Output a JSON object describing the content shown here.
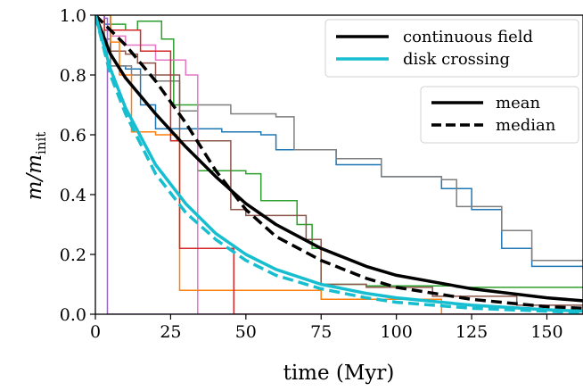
{
  "chart_data": {
    "type": "line",
    "xlabel": "time (Myr)",
    "ylabel": "m/m_init",
    "ylabel_main": "m/m",
    "ylabel_sub": "init",
    "xlim": [
      0,
      162
    ],
    "ylim": [
      0,
      1.0
    ],
    "xticks": [
      0,
      25,
      50,
      75,
      100,
      125,
      150
    ],
    "yticks": [
      0.0,
      0.2,
      0.4,
      0.6,
      0.8,
      1.0
    ],
    "xtick_labels": [
      "0",
      "25",
      "50",
      "75",
      "100",
      "125",
      "150"
    ],
    "ytick_labels": [
      "0.0",
      "0.2",
      "0.4",
      "0.6",
      "0.8",
      "1.0"
    ],
    "grid": false,
    "legend_color": {
      "position": "top-right",
      "entries": [
        {
          "label": "continuous field",
          "color": "#000000"
        },
        {
          "label": "disk crossing",
          "color": "#17becf"
        }
      ]
    },
    "legend_style": {
      "position": "upper-right-below",
      "entries": [
        {
          "label": "mean",
          "style": "solid"
        },
        {
          "label": "median",
          "style": "dashed"
        }
      ]
    },
    "thick_curves": [
      {
        "name": "continuous field",
        "stat": "mean",
        "color": "#000000",
        "style": "solid",
        "x": [
          0,
          5,
          10,
          20,
          30,
          40,
          50,
          60,
          75,
          90,
          100,
          125,
          150,
          162
        ],
        "y": [
          1.0,
          0.87,
          0.79,
          0.67,
          0.56,
          0.46,
          0.37,
          0.3,
          0.22,
          0.16,
          0.13,
          0.085,
          0.055,
          0.045
        ]
      },
      {
        "name": "continuous field",
        "stat": "median",
        "color": "#000000",
        "style": "dashed",
        "x": [
          0,
          5,
          10,
          20,
          30,
          40,
          50,
          60,
          75,
          90,
          100,
          125,
          150,
          162
        ],
        "y": [
          1.0,
          0.95,
          0.9,
          0.78,
          0.64,
          0.48,
          0.35,
          0.26,
          0.18,
          0.12,
          0.09,
          0.05,
          0.025,
          0.02
        ]
      },
      {
        "name": "disk crossing",
        "stat": "mean",
        "color": "#17becf",
        "style": "solid",
        "x": [
          0,
          5,
          10,
          20,
          30,
          40,
          50,
          60,
          75,
          90,
          100,
          125,
          150,
          162
        ],
        "y": [
          1.0,
          0.82,
          0.69,
          0.5,
          0.37,
          0.27,
          0.2,
          0.15,
          0.1,
          0.07,
          0.055,
          0.03,
          0.015,
          0.01
        ]
      },
      {
        "name": "disk crossing",
        "stat": "median",
        "color": "#17becf",
        "style": "dashed",
        "x": [
          0,
          5,
          10,
          20,
          30,
          40,
          50,
          60,
          75,
          90,
          100,
          125,
          150,
          162
        ],
        "y": [
          1.0,
          0.8,
          0.67,
          0.47,
          0.34,
          0.25,
          0.18,
          0.13,
          0.085,
          0.055,
          0.04,
          0.02,
          0.01,
          0.005
        ]
      }
    ],
    "thin_traces": [
      {
        "color": "#1f77b4",
        "x": [
          0,
          3,
          5,
          10,
          15,
          20,
          33,
          42,
          55,
          60,
          80,
          95,
          115,
          125,
          135,
          145,
          162
        ],
        "y": [
          1.0,
          0.97,
          0.83,
          0.82,
          0.7,
          0.62,
          0.62,
          0.61,
          0.6,
          0.55,
          0.5,
          0.46,
          0.42,
          0.35,
          0.22,
          0.16,
          0.15
        ]
      },
      {
        "color": "#7f7f7f",
        "x": [
          0,
          3,
          5,
          12,
          20,
          28,
          34,
          45,
          60,
          66,
          80,
          95,
          115,
          120,
          135,
          145,
          162
        ],
        "y": [
          1.0,
          0.92,
          0.83,
          0.8,
          0.78,
          0.68,
          0.7,
          0.67,
          0.66,
          0.55,
          0.52,
          0.46,
          0.45,
          0.36,
          0.28,
          0.18,
          0.17
        ]
      },
      {
        "color": "#2ca02c",
        "x": [
          0,
          5,
          10,
          14,
          22,
          26,
          34,
          50,
          55,
          67,
          72,
          75,
          90,
          120,
          162
        ],
        "y": [
          1.0,
          0.97,
          0.95,
          0.98,
          0.92,
          0.7,
          0.48,
          0.47,
          0.38,
          0.3,
          0.22,
          0.1,
          0.095,
          0.09,
          0.09
        ]
      },
      {
        "color": "#e377c2",
        "x": [
          0,
          5,
          10,
          20,
          30,
          33,
          34,
          162
        ],
        "y": [
          1.0,
          0.93,
          0.9,
          0.85,
          0.8,
          0.8,
          0.0,
          0.0
        ]
      },
      {
        "color": "#8c564b",
        "x": [
          0,
          5,
          10,
          14,
          20,
          28,
          45,
          50,
          70,
          75,
          90,
          112,
          140,
          162
        ],
        "y": [
          1.0,
          0.88,
          0.87,
          0.84,
          0.8,
          0.58,
          0.35,
          0.33,
          0.25,
          0.1,
          0.09,
          0.06,
          0.03,
          0.02
        ]
      },
      {
        "color": "#ff7f0e",
        "x": [
          0,
          5,
          8,
          12,
          20,
          27,
          28,
          50,
          75,
          115,
          125,
          162
        ],
        "y": [
          1.0,
          0.91,
          0.8,
          0.61,
          0.6,
          0.58,
          0.08,
          0.08,
          0.05,
          0.0,
          0.0,
          0.0
        ]
      },
      {
        "color": "#d62728",
        "x": [
          0,
          3,
          15,
          25,
          28,
          30,
          45,
          46,
          162
        ],
        "y": [
          1.0,
          0.95,
          0.88,
          0.58,
          0.22,
          0.22,
          0.22,
          0.0,
          0.0
        ]
      },
      {
        "color": "#9467bd",
        "x": [
          0,
          3,
          4,
          162
        ],
        "y": [
          1.0,
          0.99,
          0.0,
          0.0
        ]
      }
    ]
  }
}
